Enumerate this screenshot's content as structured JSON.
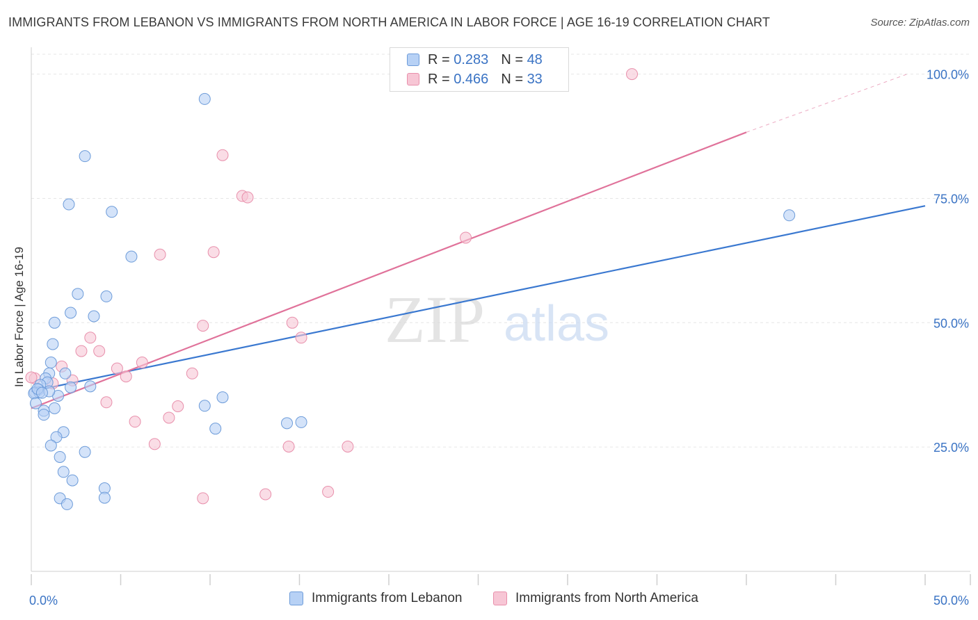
{
  "title": "IMMIGRANTS FROM LEBANON VS IMMIGRANTS FROM NORTH AMERICA IN LABOR FORCE | AGE 16-19 CORRELATION CHART",
  "source": "Source: ZipAtlas.com",
  "watermark": {
    "zip": "ZIP",
    "atlas": "atlas"
  },
  "legend_top": {
    "rows": [
      {
        "r_label": "R =",
        "r_value": "0.283",
        "n_label": "N =",
        "n_value": "48"
      },
      {
        "r_label": "R =",
        "r_value": "0.466",
        "n_label": "N =",
        "n_value": "33"
      }
    ]
  },
  "colors": {
    "blue_fill": "#b7d1f5",
    "blue_stroke": "#6c9bd9",
    "blue_line": "#3a78d0",
    "pink_fill": "#f7c6d5",
    "pink_stroke": "#e88fab",
    "pink_line": "#e0729a",
    "tick_label": "#3a73c4",
    "grid": "#e6e6e6"
  },
  "chart_data": {
    "type": "scatter",
    "title": "IMMIGRANTS FROM LEBANON VS IMMIGRANTS FROM NORTH AMERICA IN LABOR FORCE | AGE 16-19 CORRELATION CHART",
    "xlabel": "",
    "ylabel": "In Labor Force | Age 16-19",
    "xlim": [
      0,
      50
    ],
    "ylim": [
      0,
      104
    ],
    "x_tick_labels": [
      {
        "value": 0,
        "label": "0.0%"
      },
      {
        "value": 50,
        "label": "50.0%"
      }
    ],
    "y_tick_labels": [
      {
        "value": 25,
        "label": "25.0%"
      },
      {
        "value": 50,
        "label": "50.0%"
      },
      {
        "value": 75,
        "label": "75.0%"
      },
      {
        "value": 100,
        "label": "100.0%"
      }
    ],
    "grid": true,
    "series": [
      {
        "name": "Immigrants from Lebanon",
        "color": "blue",
        "trend": {
          "x": [
            0,
            50
          ],
          "y": [
            36.2,
            73.5
          ],
          "dashed_to": null
        },
        "points": [
          [
            9.7,
            95
          ],
          [
            3.0,
            83.5
          ],
          [
            2.1,
            73.8
          ],
          [
            4.5,
            72.3
          ],
          [
            5.6,
            63.3
          ],
          [
            2.6,
            55.8
          ],
          [
            4.2,
            55.3
          ],
          [
            2.2,
            52.0
          ],
          [
            3.5,
            51.3
          ],
          [
            1.3,
            50.0
          ],
          [
            1.2,
            45.7
          ],
          [
            1.1,
            42.0
          ],
          [
            1.9,
            39.8
          ],
          [
            1.0,
            39.8
          ],
          [
            0.8,
            38.8
          ],
          [
            0.9,
            38.0
          ],
          [
            0.5,
            37.5
          ],
          [
            2.2,
            37.0
          ],
          [
            3.3,
            37.2
          ],
          [
            0.4,
            36.5
          ],
          [
            0.2,
            36.0
          ],
          [
            0.45,
            36.0
          ],
          [
            0.15,
            35.8
          ],
          [
            1.5,
            35.3
          ],
          [
            10.7,
            35.0
          ],
          [
            0.25,
            33.8
          ],
          [
            9.7,
            33.3
          ],
          [
            1.3,
            32.8
          ],
          [
            0.7,
            32.3
          ],
          [
            0.7,
            31.5
          ],
          [
            14.3,
            29.8
          ],
          [
            15.1,
            30.0
          ],
          [
            10.3,
            28.7
          ],
          [
            1.8,
            28.0
          ],
          [
            1.4,
            27.0
          ],
          [
            1.1,
            25.3
          ],
          [
            3.0,
            24.0
          ],
          [
            1.6,
            23.0
          ],
          [
            1.8,
            20.0
          ],
          [
            2.3,
            18.3
          ],
          [
            4.1,
            16.7
          ],
          [
            1.6,
            14.7
          ],
          [
            4.1,
            14.8
          ],
          [
            2.0,
            13.5
          ],
          [
            42.4,
            71.6
          ],
          [
            0.35,
            36.7
          ],
          [
            1.0,
            36.2
          ],
          [
            0.6,
            35.9
          ]
        ]
      },
      {
        "name": "Immigrants from North America",
        "color": "pink",
        "trend": {
          "x": [
            0,
            40
          ],
          "y": [
            32.8,
            88.3
          ],
          "dashed_to": [
            49,
            100
          ]
        },
        "points": [
          [
            20.6,
            100
          ],
          [
            33.6,
            100
          ],
          [
            10.7,
            83.7
          ],
          [
            11.8,
            75.5
          ],
          [
            12.1,
            75.2
          ],
          [
            24.3,
            67.1
          ],
          [
            7.2,
            63.7
          ],
          [
            10.2,
            64.2
          ],
          [
            14.6,
            50.0
          ],
          [
            9.6,
            49.4
          ],
          [
            3.3,
            47.0
          ],
          [
            15.1,
            47.0
          ],
          [
            2.8,
            44.3
          ],
          [
            3.8,
            44.3
          ],
          [
            6.2,
            42.0
          ],
          [
            1.7,
            41.2
          ],
          [
            4.8,
            40.8
          ],
          [
            9.0,
            39.8
          ],
          [
            5.3,
            39.2
          ],
          [
            0.2,
            38.8
          ],
          [
            2.3,
            38.4
          ],
          [
            1.2,
            37.8
          ],
          [
            4.2,
            34.0
          ],
          [
            8.2,
            33.2
          ],
          [
            7.7,
            30.9
          ],
          [
            5.8,
            30.1
          ],
          [
            6.9,
            25.6
          ],
          [
            14.4,
            25.1
          ],
          [
            17.7,
            25.1
          ],
          [
            9.6,
            14.7
          ],
          [
            13.1,
            15.5
          ],
          [
            16.6,
            16.0
          ],
          [
            0.0,
            39.0
          ]
        ]
      }
    ]
  },
  "legend_bottom": [
    {
      "label": "Immigrants from Lebanon"
    },
    {
      "label": "Immigrants from North America"
    }
  ]
}
